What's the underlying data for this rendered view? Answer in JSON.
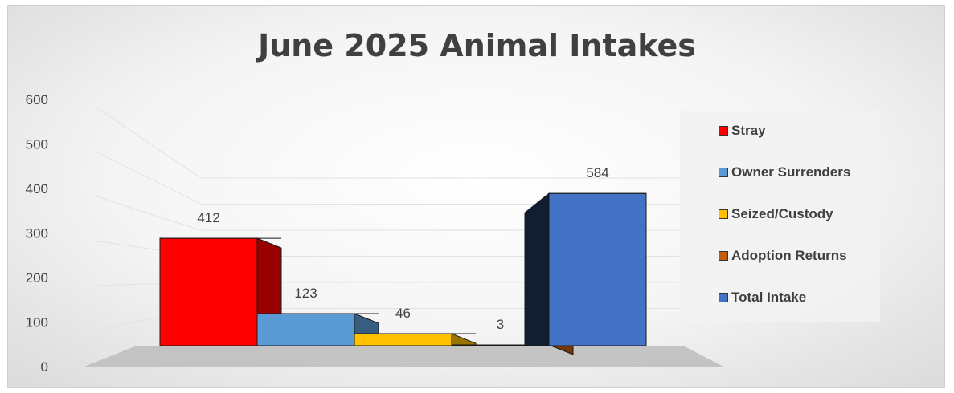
{
  "chart_data": {
    "type": "bar",
    "title": "June 2025 Animal Intakes",
    "xlabel": "",
    "ylabel": "",
    "ylim": [
      0,
      600
    ],
    "yticks": [
      0,
      100,
      200,
      300,
      400,
      500,
      600
    ],
    "grid": true,
    "legend_position": "right",
    "series": [
      {
        "name": "Stray",
        "value": 412,
        "color": "#ff0000",
        "label": "412"
      },
      {
        "name": "Owner Surrenders",
        "value": 123,
        "color": "#5b9bd5",
        "label": "123"
      },
      {
        "name": "Seized/Custody",
        "value": 46,
        "color": "#ffc000",
        "label": "46"
      },
      {
        "name": "Adoption Returns",
        "value": 3,
        "color": "#c55a11",
        "label": "3"
      },
      {
        "name": "Total Intake",
        "value": 584,
        "color": "#4472c4",
        "label": "584"
      }
    ]
  }
}
